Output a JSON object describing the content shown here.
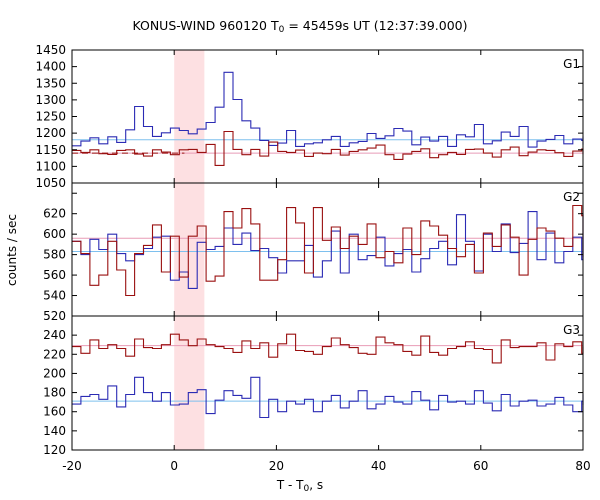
{
  "chart_data": {
    "type": "line",
    "title_main": "KONUS-WIND 960120 T",
    "title_sub": "0",
    "title_rest": " = 45459s UT (12:37:39.000)",
    "xlabel_main": "T - T",
    "xlabel_sub": "0",
    "xlabel_rest": ", s",
    "ylabel": "counts / sec",
    "xlim": [
      -20,
      80
    ],
    "xticks": [
      "-20",
      "0",
      "20",
      "40",
      "60",
      "80"
    ],
    "highlight_x": [
      0,
      5.9
    ],
    "colors": {
      "blue": "#2b2bb4",
      "red": "#9a1010",
      "bg_blue": "#7ec0ee",
      "bg_red": "#e89bb6",
      "highlight": "#fde0e2"
    },
    "bin_start": -20,
    "bin_width": 1.75,
    "panels": [
      {
        "name": "G1",
        "ylim": [
          1050,
          1450
        ],
        "yticks": [
          "1050",
          "1100",
          "1150",
          "1200",
          "1250",
          "1300",
          "1350",
          "1400",
          "1450"
        ],
        "series": [
          {
            "color": "blue",
            "background": 1180,
            "values": [
              1162,
              1176,
              1186,
              1168,
              1189,
              1172,
              1210,
              1280,
              1220,
              1190,
              1201,
              1215,
              1208,
              1198,
              1212,
              1232,
              1278,
              1383,
              1301,
              1237,
              1215,
              1178,
              1163,
              1170,
              1208,
              1160,
              1168,
              1171,
              1180,
              1190,
              1160,
              1171,
              1175,
              1199,
              1184,
              1192,
              1214,
              1206,
              1165,
              1188,
              1176,
              1190,
              1160,
              1195,
              1189,
              1226,
              1168,
              1177,
              1203,
              1190,
              1220,
              1158,
              1176,
              1181,
              1193,
              1168,
              1182,
              1178,
              1165,
              1190
            ]
          },
          {
            "color": "red",
            "background": 1140,
            "values": [
              1148,
              1142,
              1150,
              1138,
              1136,
              1148,
              1150,
              1137,
              1131,
              1150,
              1143,
              1135,
              1150,
              1151,
              1142,
              1166,
              1103,
              1205,
              1151,
              1135,
              1151,
              1131,
              1173,
              1145,
              1142,
              1149,
              1130,
              1140,
              1138,
              1151,
              1134,
              1145,
              1150,
              1155,
              1164,
              1135,
              1121,
              1137,
              1145,
              1153,
              1126,
              1135,
              1142,
              1136,
              1151,
              1152,
              1140,
              1128,
              1150,
              1158,
              1132,
              1143,
              1150,
              1148,
              1141,
              1130,
              1146,
              1152,
              1136,
              1142
            ],
            "dashed_segment": [
              -20,
              2
            ]
          }
        ]
      },
      {
        "name": "G2",
        "ylim": [
          520,
          650
        ],
        "yticks": [
          "520",
          "540",
          "560",
          "580",
          "600",
          "620",
          "640"
        ],
        "series": [
          {
            "color": "blue",
            "background": 583,
            "values": [
              593,
              580,
              595,
              585,
              600,
              581,
              574,
              580,
              586,
              597,
              598,
              555,
              563,
              547,
              592,
              585,
              588,
              606,
              590,
              601,
              584,
              586,
              577,
              562,
              574,
              574,
              589,
              558,
              574,
              603,
              562,
              600,
              575,
              579,
              597,
              569,
              581,
              585,
              563,
              576,
              586,
              593,
              570,
              619,
              593,
              564,
              600,
              583,
              610,
              582,
              591,
              622,
              575,
              601,
              572,
              583,
              597,
              575,
              620,
              580
            ]
          },
          {
            "color": "red",
            "background": 596,
            "values": [
              593,
              581,
              550,
              560,
              593,
              565,
              540,
              581,
              589,
              609,
              563,
              598,
              558,
              598,
              608,
              554,
              559,
              622,
              606,
              625,
              610,
              555,
              555,
              575,
              626,
              611,
              562,
              626,
              594,
              607,
              586,
              598,
              590,
              610,
              577,
              583,
              572,
              606,
              580,
              613,
              608,
              599,
              586,
              578,
              590,
              562,
              601,
              588,
              609,
              597,
              560,
              595,
              606,
              603,
              596,
              588,
              628,
              618,
              578,
              582
            ]
          }
        ]
      },
      {
        "name": "G3",
        "ylim": [
          120,
          260
        ],
        "yticks": [
          "120",
          "140",
          "160",
          "180",
          "200",
          "220",
          "240",
          "260"
        ],
        "series": [
          {
            "color": "red",
            "background": 229,
            "values": [
              228,
              221,
              235,
              226,
              230,
              226,
              218,
              236,
              227,
              226,
              230,
              241,
              235,
              229,
              236,
              230,
              228,
              226,
              222,
              234,
              226,
              232,
              217,
              231,
              241,
              224,
              223,
              220,
              228,
              237,
              230,
              227,
              221,
              220,
              238,
              232,
              230,
              223,
              219,
              239,
              222,
              219,
              226,
              228,
              233,
              226,
              225,
              211,
              235,
              227,
              228,
              228,
              232,
              214,
              231,
              228,
              233,
              221,
              228,
              225
            ]
          },
          {
            "color": "blue",
            "background": 171,
            "values": [
              168,
              176,
              178,
              173,
              187,
              165,
              178,
              196,
              180,
              171,
              180,
              167,
              168,
              180,
              183,
              158,
              172,
              182,
              177,
              174,
              196,
              154,
              173,
              160,
              171,
              168,
              173,
              160,
              171,
              177,
              164,
              171,
              182,
              163,
              168,
              176,
              170,
              168,
              181,
              172,
              162,
              177,
              170,
              171,
              168,
              182,
              169,
              161,
              178,
              166,
              171,
              172,
              166,
              168,
              175,
              167,
              160,
              171,
              167,
              178
            ]
          }
        ]
      }
    ]
  }
}
